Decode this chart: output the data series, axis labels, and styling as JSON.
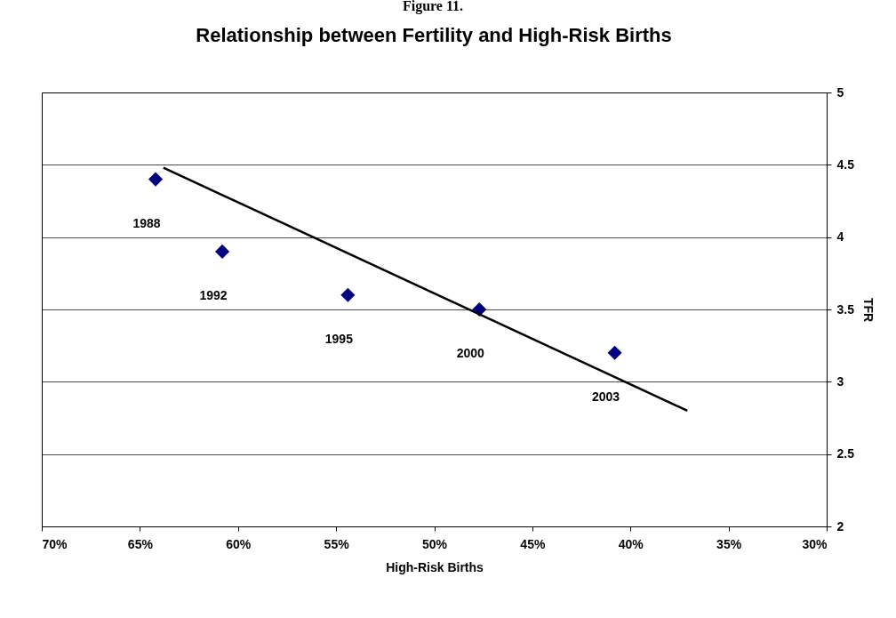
{
  "chart_data": {
    "type": "scatter",
    "title": "Relationship between Fertility and High-Risk Births",
    "annotations": [
      "Figure 11.",
      {
        "text": "1988",
        "x": 64.2,
        "y": 4.4
      },
      {
        "text": "1992",
        "x": 60.8,
        "y": 3.9
      },
      {
        "text": "1995",
        "x": 54.4,
        "y": 3.6
      },
      {
        "text": "2000",
        "x": 47.7,
        "y": 3.5
      },
      {
        "text": "2003",
        "x": 40.8,
        "y": 3.2
      }
    ],
    "xlabel": "High-Risk Births",
    "ylabel": "TFR",
    "xlim": [
      70,
      30
    ],
    "xticks": [
      {
        "value": 70,
        "label": "70%"
      },
      {
        "value": 65,
        "label": "65%"
      },
      {
        "value": 60,
        "label": "60%"
      },
      {
        "value": 55,
        "label": "55%"
      },
      {
        "value": 50,
        "label": "50%"
      },
      {
        "value": 45,
        "label": "45%"
      },
      {
        "value": 40,
        "label": "40%"
      },
      {
        "value": 35,
        "label": "35%"
      },
      {
        "value": 30,
        "label": "30%"
      }
    ],
    "ylim": [
      2,
      5
    ],
    "yticks": [
      2,
      2.5,
      3,
      3.5,
      4,
      4.5,
      5
    ],
    "grid": "y",
    "series": [
      {
        "marker": "diamond",
        "color": "#000080",
        "x": [
          64.2,
          60.8,
          54.4,
          47.7,
          40.8
        ],
        "values": [
          4.4,
          3.9,
          3.6,
          3.5,
          3.2
        ]
      },
      {
        "type": "line",
        "color": "#000000",
        "x": [
          63.8,
          37.1
        ],
        "values": [
          4.48,
          2.8
        ]
      }
    ]
  }
}
